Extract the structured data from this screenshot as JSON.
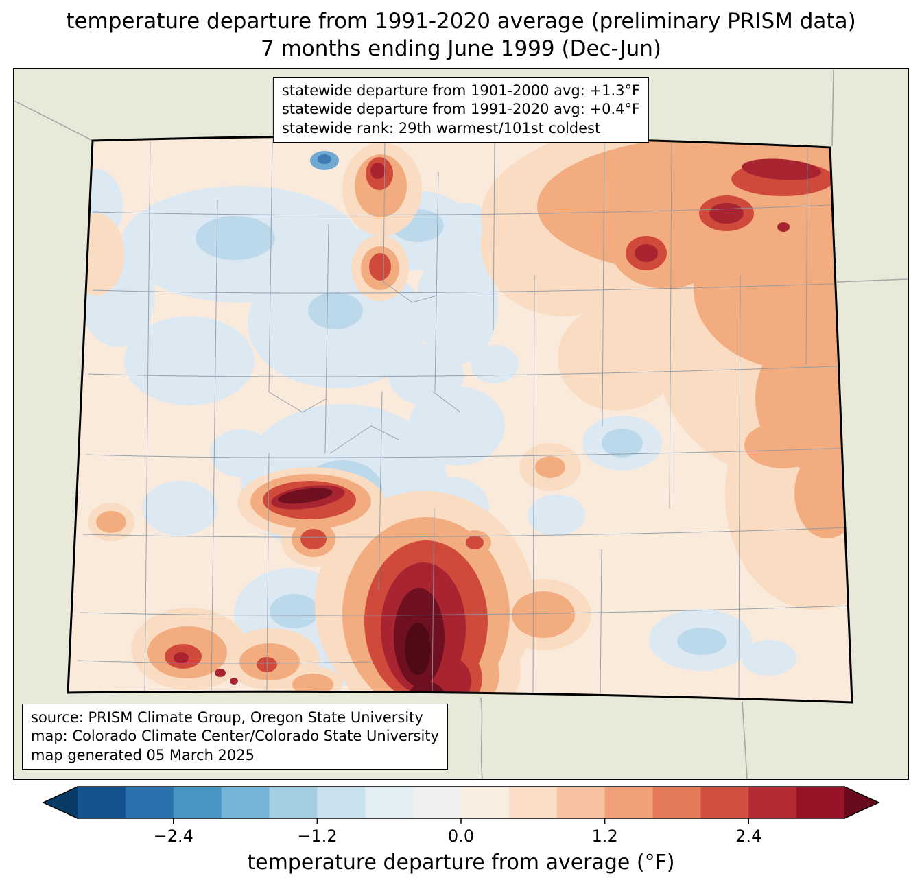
{
  "title": {
    "line1": "temperature departure from 1991-2020 average (preliminary PRISM data)",
    "line2": "7 months ending June 1999 (Dec-Jun)"
  },
  "stats_box": {
    "lines": [
      "statewide departure from 1901-2000 avg: +1.3°F",
      "statewide departure from 1991-2020 avg: +0.4°F",
      "statewide rank: 29th warmest/101st coldest"
    ]
  },
  "source_box": {
    "lines": [
      "source: PRISM Climate Group, Oregon State University",
      "map: Colorado Climate Center/Colorado State University",
      "map generated 05 March 2025"
    ]
  },
  "colorbar": {
    "label": "temperature departure from average (°F)",
    "vmin": -3.2,
    "vmax": 3.2,
    "ticks": [
      {
        "value": -2.4,
        "label": "−2.4"
      },
      {
        "value": -1.2,
        "label": "−1.2"
      },
      {
        "value": 0.0,
        "label": "0.0"
      },
      {
        "value": 1.2,
        "label": "1.2"
      },
      {
        "value": 2.4,
        "label": "2.4"
      }
    ],
    "segment_colors": [
      "#14518f",
      "#2a72ae",
      "#4795c4",
      "#74b4d7",
      "#a3cee4",
      "#c9e1ef",
      "#e2edf4",
      "#f0f1ef",
      "#faeee3",
      "#f9ddc6",
      "#f6c2a0",
      "#f0a078",
      "#e47a57",
      "#d05141",
      "#b62b33",
      "#951227"
    ],
    "arrow_left_color": "#0a3a66",
    "arrow_right_color": "#670b1c"
  },
  "map": {
    "region": "Colorado",
    "units": "°F",
    "surrounding_color": "#e9e9d9",
    "base_anomaly_color": "#faeadc",
    "county_line_color": "#8b9aa9",
    "state_border_color": "#000000"
  }
}
